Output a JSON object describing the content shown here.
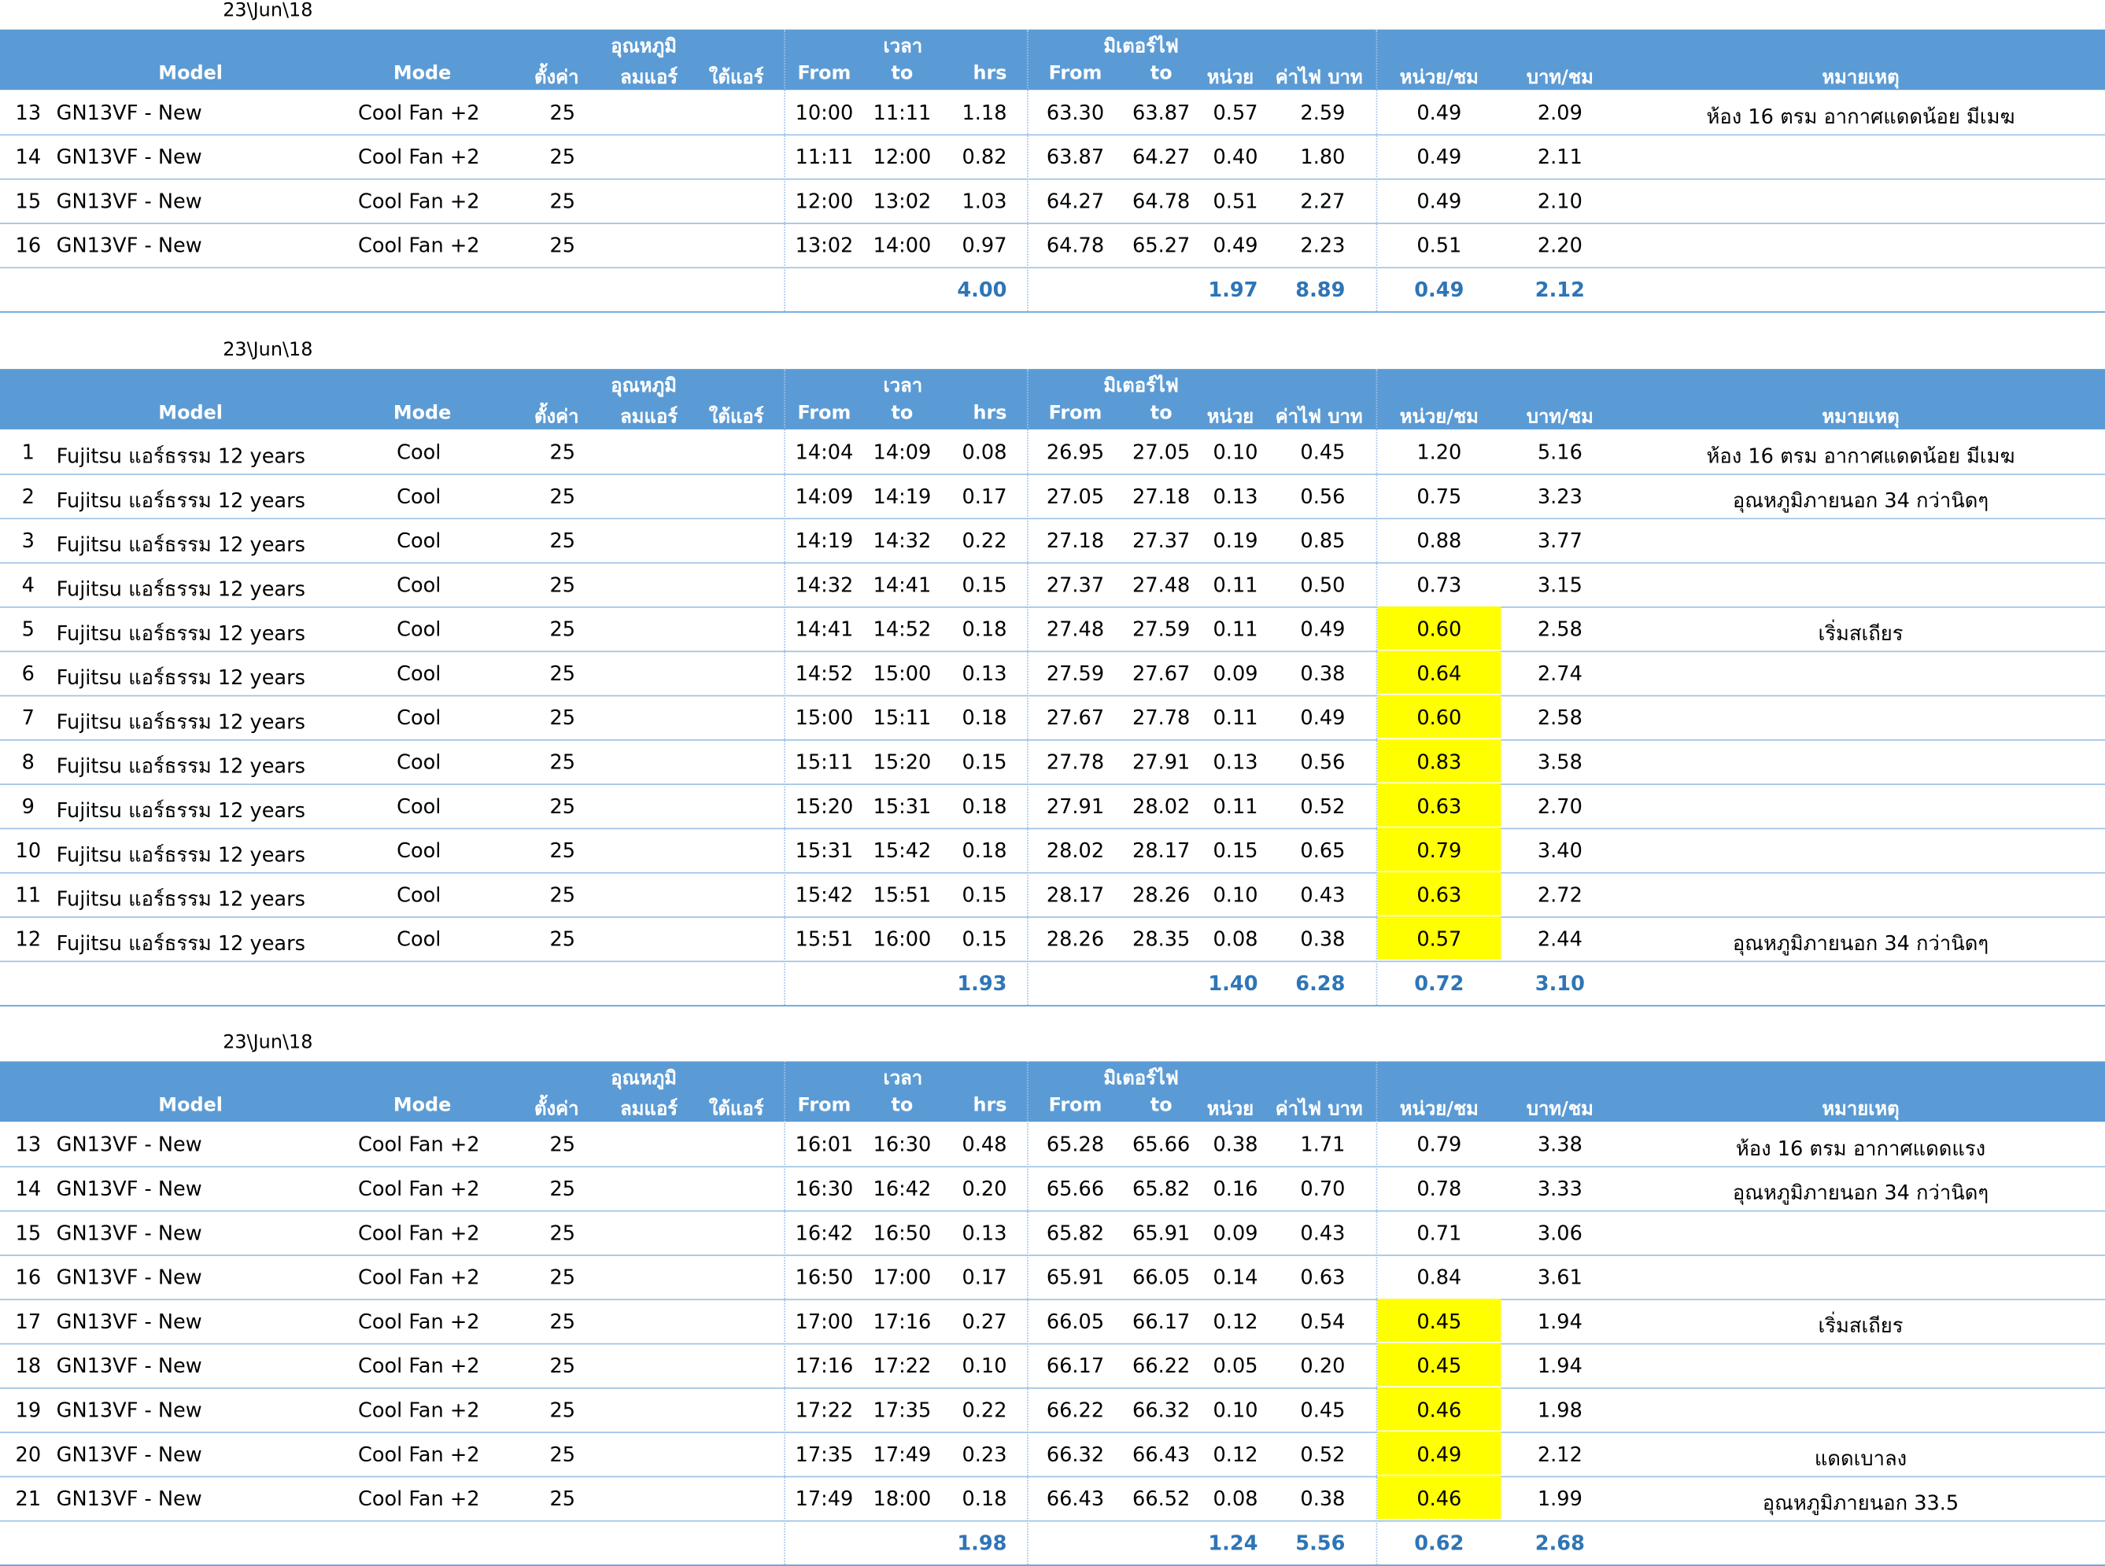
{
  "columns": {
    "group_temp": "อุณหภูมิ",
    "group_time": "เวลา",
    "group_meter": "มิเตอร์ไฟ",
    "model": "Model",
    "mode": "Mode",
    "set": "ตั้งค่า",
    "wind": "ลมแอร์",
    "under": "ใต้แอร์",
    "from": "From",
    "to": "to",
    "hrs": "hrs",
    "m_from": "From",
    "m_to": "to",
    "unit": "หน่วย",
    "cost": "ค่าไฟ บาท",
    "unit_per_hr": "หน่วย/ชม",
    "baht_per_hr": "บาท/ชม",
    "note": "หมายเหตุ"
  },
  "highlight_color": "#ffff00",
  "header_color": "#5b9bd5",
  "total_color": "#2e75b6",
  "tables": [
    {
      "date": "23\\Jun\\18",
      "rows": [
        {
          "no": "13",
          "model": "GN13VF - New",
          "mode": "Cool Fan +2",
          "set": "25",
          "from": "10:00",
          "to": "11:11",
          "hrs": "1.18",
          "m_from": "63.30",
          "m_to": "63.87",
          "unit": "0.57",
          "cost": "2.59",
          "uph": "0.49",
          "bph": "2.09",
          "note": "ห้อง 16 ตรม อากาศแดดน้อย มีเมฆ",
          "hl": false
        },
        {
          "no": "14",
          "model": "GN13VF - New",
          "mode": "Cool Fan +2",
          "set": "25",
          "from": "11:11",
          "to": "12:00",
          "hrs": "0.82",
          "m_from": "63.87",
          "m_to": "64.27",
          "unit": "0.40",
          "cost": "1.80",
          "uph": "0.49",
          "bph": "2.11",
          "note": "",
          "hl": false
        },
        {
          "no": "15",
          "model": "GN13VF - New",
          "mode": "Cool Fan +2",
          "set": "25",
          "from": "12:00",
          "to": "13:02",
          "hrs": "1.03",
          "m_from": "64.27",
          "m_to": "64.78",
          "unit": "0.51",
          "cost": "2.27",
          "uph": "0.49",
          "bph": "2.10",
          "note": "",
          "hl": false
        },
        {
          "no": "16",
          "model": "GN13VF - New",
          "mode": "Cool Fan +2",
          "set": "25",
          "from": "13:02",
          "to": "14:00",
          "hrs": "0.97",
          "m_from": "64.78",
          "m_to": "65.27",
          "unit": "0.49",
          "cost": "2.23",
          "uph": "0.51",
          "bph": "2.20",
          "note": "",
          "hl": false
        }
      ],
      "total": {
        "hrs": "4.00",
        "unit": "1.97",
        "cost": "8.89",
        "uph": "0.49",
        "bph": "2.12"
      }
    },
    {
      "date": "23\\Jun\\18",
      "rows": [
        {
          "no": "1",
          "model": "Fujitsu แอร์ธรรม 12 years",
          "mode": "Cool",
          "set": "25",
          "from": "14:04",
          "to": "14:09",
          "hrs": "0.08",
          "m_from": "26.95",
          "m_to": "27.05",
          "unit": "0.10",
          "cost": "0.45",
          "uph": "1.20",
          "bph": "5.16",
          "note": "ห้อง 16 ตรม อากาศแดดน้อย มีเมฆ",
          "hl": false
        },
        {
          "no": "2",
          "model": "Fujitsu แอร์ธรรม 12 years",
          "mode": "Cool",
          "set": "25",
          "from": "14:09",
          "to": "14:19",
          "hrs": "0.17",
          "m_from": "27.05",
          "m_to": "27.18",
          "unit": "0.13",
          "cost": "0.56",
          "uph": "0.75",
          "bph": "3.23",
          "note": "อุณหภูมิภายนอก 34 กว่านิดๆ",
          "hl": false
        },
        {
          "no": "3",
          "model": "Fujitsu แอร์ธรรม 12 years",
          "mode": "Cool",
          "set": "25",
          "from": "14:19",
          "to": "14:32",
          "hrs": "0.22",
          "m_from": "27.18",
          "m_to": "27.37",
          "unit": "0.19",
          "cost": "0.85",
          "uph": "0.88",
          "bph": "3.77",
          "note": "",
          "hl": false
        },
        {
          "no": "4",
          "model": "Fujitsu แอร์ธรรม 12 years",
          "mode": "Cool",
          "set": "25",
          "from": "14:32",
          "to": "14:41",
          "hrs": "0.15",
          "m_from": "27.37",
          "m_to": "27.48",
          "unit": "0.11",
          "cost": "0.50",
          "uph": "0.73",
          "bph": "3.15",
          "note": "",
          "hl": false
        },
        {
          "no": "5",
          "model": "Fujitsu แอร์ธรรม 12 years",
          "mode": "Cool",
          "set": "25",
          "from": "14:41",
          "to": "14:52",
          "hrs": "0.18",
          "m_from": "27.48",
          "m_to": "27.59",
          "unit": "0.11",
          "cost": "0.49",
          "uph": "0.60",
          "bph": "2.58",
          "note": "เริ่มสเถียร",
          "hl": true
        },
        {
          "no": "6",
          "model": "Fujitsu แอร์ธรรม 12 years",
          "mode": "Cool",
          "set": "25",
          "from": "14:52",
          "to": "15:00",
          "hrs": "0.13",
          "m_from": "27.59",
          "m_to": "27.67",
          "unit": "0.09",
          "cost": "0.38",
          "uph": "0.64",
          "bph": "2.74",
          "note": "",
          "hl": true
        },
        {
          "no": "7",
          "model": "Fujitsu แอร์ธรรม 12 years",
          "mode": "Cool",
          "set": "25",
          "from": "15:00",
          "to": "15:11",
          "hrs": "0.18",
          "m_from": "27.67",
          "m_to": "27.78",
          "unit": "0.11",
          "cost": "0.49",
          "uph": "0.60",
          "bph": "2.58",
          "note": "",
          "hl": true
        },
        {
          "no": "8",
          "model": "Fujitsu แอร์ธรรม 12 years",
          "mode": "Cool",
          "set": "25",
          "from": "15:11",
          "to": "15:20",
          "hrs": "0.15",
          "m_from": "27.78",
          "m_to": "27.91",
          "unit": "0.13",
          "cost": "0.56",
          "uph": "0.83",
          "bph": "3.58",
          "note": "",
          "hl": true
        },
        {
          "no": "9",
          "model": "Fujitsu แอร์ธรรม 12 years",
          "mode": "Cool",
          "set": "25",
          "from": "15:20",
          "to": "15:31",
          "hrs": "0.18",
          "m_from": "27.91",
          "m_to": "28.02",
          "unit": "0.11",
          "cost": "0.52",
          "uph": "0.63",
          "bph": "2.70",
          "note": "",
          "hl": true
        },
        {
          "no": "10",
          "model": "Fujitsu แอร์ธรรม 12 years",
          "mode": "Cool",
          "set": "25",
          "from": "15:31",
          "to": "15:42",
          "hrs": "0.18",
          "m_from": "28.02",
          "m_to": "28.17",
          "unit": "0.15",
          "cost": "0.65",
          "uph": "0.79",
          "bph": "3.40",
          "note": "",
          "hl": true
        },
        {
          "no": "11",
          "model": "Fujitsu แอร์ธรรม 12 years",
          "mode": "Cool",
          "set": "25",
          "from": "15:42",
          "to": "15:51",
          "hrs": "0.15",
          "m_from": "28.17",
          "m_to": "28.26",
          "unit": "0.10",
          "cost": "0.43",
          "uph": "0.63",
          "bph": "2.72",
          "note": "",
          "hl": true
        },
        {
          "no": "12",
          "model": "Fujitsu แอร์ธรรม 12 years",
          "mode": "Cool",
          "set": "25",
          "from": "15:51",
          "to": "16:00",
          "hrs": "0.15",
          "m_from": "28.26",
          "m_to": "28.35",
          "unit": "0.08",
          "cost": "0.38",
          "uph": "0.57",
          "bph": "2.44",
          "note": "อุณหภูมิภายนอก 34 กว่านิดๆ",
          "hl": true
        }
      ],
      "total": {
        "hrs": "1.93",
        "unit": "1.40",
        "cost": "6.28",
        "uph": "0.72",
        "bph": "3.10"
      }
    },
    {
      "date": "23\\Jun\\18",
      "rows": [
        {
          "no": "13",
          "model": "GN13VF - New",
          "mode": "Cool Fan +2",
          "set": "25",
          "from": "16:01",
          "to": "16:30",
          "hrs": "0.48",
          "m_from": "65.28",
          "m_to": "65.66",
          "unit": "0.38",
          "cost": "1.71",
          "uph": "0.79",
          "bph": "3.38",
          "note": "ห้อง 16 ตรม อากาศแดดแรง",
          "hl": false
        },
        {
          "no": "14",
          "model": "GN13VF - New",
          "mode": "Cool Fan +2",
          "set": "25",
          "from": "16:30",
          "to": "16:42",
          "hrs": "0.20",
          "m_from": "65.66",
          "m_to": "65.82",
          "unit": "0.16",
          "cost": "0.70",
          "uph": "0.78",
          "bph": "3.33",
          "note": "อุณหภูมิภายนอก 34 กว่านิดๆ",
          "hl": false
        },
        {
          "no": "15",
          "model": "GN13VF - New",
          "mode": "Cool Fan +2",
          "set": "25",
          "from": "16:42",
          "to": "16:50",
          "hrs": "0.13",
          "m_from": "65.82",
          "m_to": "65.91",
          "unit": "0.09",
          "cost": "0.43",
          "uph": "0.71",
          "bph": "3.06",
          "note": "",
          "hl": false
        },
        {
          "no": "16",
          "model": "GN13VF - New",
          "mode": "Cool Fan +2",
          "set": "25",
          "from": "16:50",
          "to": "17:00",
          "hrs": "0.17",
          "m_from": "65.91",
          "m_to": "66.05",
          "unit": "0.14",
          "cost": "0.63",
          "uph": "0.84",
          "bph": "3.61",
          "note": "",
          "hl": false
        },
        {
          "no": "17",
          "model": "GN13VF - New",
          "mode": "Cool Fan +2",
          "set": "25",
          "from": "17:00",
          "to": "17:16",
          "hrs": "0.27",
          "m_from": "66.05",
          "m_to": "66.17",
          "unit": "0.12",
          "cost": "0.54",
          "uph": "0.45",
          "bph": "1.94",
          "note": "เริ่มสเถียร",
          "hl": true
        },
        {
          "no": "18",
          "model": "GN13VF - New",
          "mode": "Cool Fan +2",
          "set": "25",
          "from": "17:16",
          "to": "17:22",
          "hrs": "0.10",
          "m_from": "66.17",
          "m_to": "66.22",
          "unit": "0.05",
          "cost": "0.20",
          "uph": "0.45",
          "bph": "1.94",
          "note": "",
          "hl": true
        },
        {
          "no": "19",
          "model": "GN13VF - New",
          "mode": "Cool Fan +2",
          "set": "25",
          "from": "17:22",
          "to": "17:35",
          "hrs": "0.22",
          "m_from": "66.22",
          "m_to": "66.32",
          "unit": "0.10",
          "cost": "0.45",
          "uph": "0.46",
          "bph": "1.98",
          "note": "",
          "hl": true
        },
        {
          "no": "20",
          "model": "GN13VF - New",
          "mode": "Cool Fan +2",
          "set": "25",
          "from": "17:35",
          "to": "17:49",
          "hrs": "0.23",
          "m_from": "66.32",
          "m_to": "66.43",
          "unit": "0.12",
          "cost": "0.52",
          "uph": "0.49",
          "bph": "2.12",
          "note": "แดดเบาลง",
          "hl": true
        },
        {
          "no": "21",
          "model": "GN13VF - New",
          "mode": "Cool Fan +2",
          "set": "25",
          "from": "17:49",
          "to": "18:00",
          "hrs": "0.18",
          "m_from": "66.43",
          "m_to": "66.52",
          "unit": "0.08",
          "cost": "0.38",
          "uph": "0.46",
          "bph": "1.99",
          "note": "อุณหภูมิภายนอก 33.5",
          "hl": true
        }
      ],
      "total": {
        "hrs": "1.98",
        "unit": "1.24",
        "cost": "5.56",
        "uph": "0.62",
        "bph": "2.68"
      }
    }
  ]
}
